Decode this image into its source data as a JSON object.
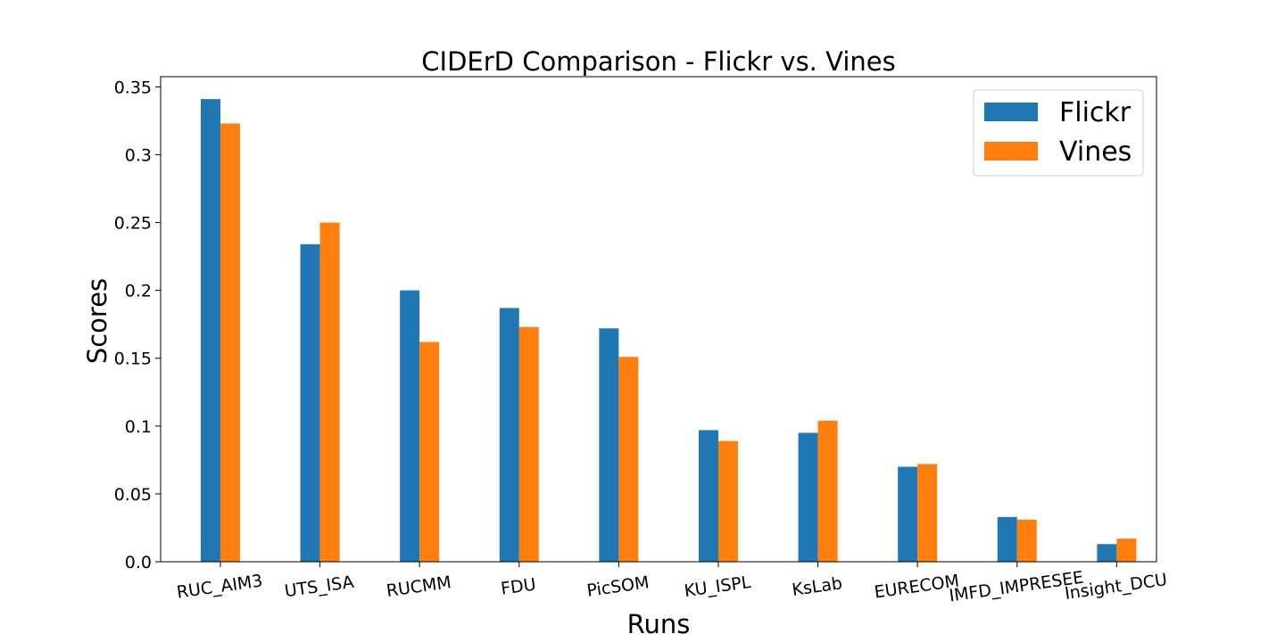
{
  "chart_data": {
    "type": "bar",
    "title": "CIDErD Comparison - Flickr vs. Vines",
    "xlabel": "Runs",
    "ylabel": "Scores",
    "categories": [
      "RUC_AIM3",
      "UTS_ISA",
      "RUCMM",
      "FDU",
      "PicSOM",
      "KU_ISPL",
      "KsLab",
      "EURECOM",
      "IMFD_IMPRESEE",
      "Insight_DCU"
    ],
    "series": [
      {
        "name": "Flickr",
        "color": "#1f77b4",
        "values": [
          0.341,
          0.234,
          0.2,
          0.187,
          0.172,
          0.097,
          0.095,
          0.07,
          0.033,
          0.013
        ]
      },
      {
        "name": "Vines",
        "color": "#ff7f0e",
        "values": [
          0.323,
          0.25,
          0.162,
          0.173,
          0.151,
          0.089,
          0.104,
          0.072,
          0.031,
          0.017
        ]
      }
    ],
    "yticks": [
      "0.0",
      "0.05",
      "0.1",
      "0.15",
      "0.2",
      "0.25",
      "0.3",
      "0.35"
    ],
    "ylim": [
      0,
      0.3575
    ],
    "grid": false,
    "legend_position": "top-right"
  }
}
